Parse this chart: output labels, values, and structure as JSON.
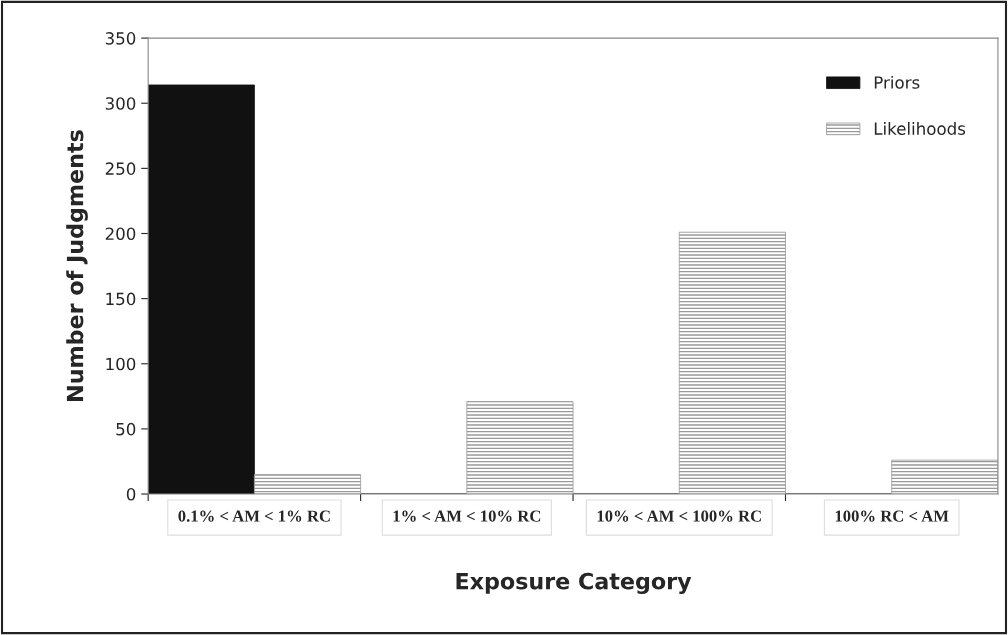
{
  "chart_data": {
    "type": "bar",
    "xlabel": "Exposure Category",
    "ylabel": "Number of Judgments",
    "categories": [
      "0.1% < AM < 1% RC",
      "1% < AM < 10% RC",
      "10% < AM < 100% RC",
      "100% RC < AM"
    ],
    "series": [
      {
        "name": "Priors",
        "color": "#111111",
        "values": [
          314,
          0,
          0,
          0
        ]
      },
      {
        "name": "Likelihoods",
        "color": "#9a9a9a",
        "values": [
          15,
          71,
          201,
          26
        ]
      }
    ],
    "ylim": [
      0,
      350
    ],
    "yticks": [
      0,
      50,
      100,
      150,
      200,
      250,
      300,
      350
    ],
    "grid": false,
    "legend": "top right"
  }
}
